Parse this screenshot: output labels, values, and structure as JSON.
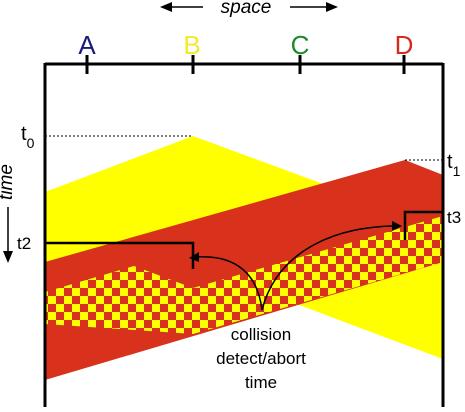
{
  "axis": {
    "space_label": "space",
    "time_label": "time"
  },
  "stations": [
    {
      "label": "A",
      "color": "#1a1a7a"
    },
    {
      "label": "B",
      "color": "#f2ea2a"
    },
    {
      "label": "C",
      "color": "#1e8a2e"
    },
    {
      "label": "D",
      "color": "#d42a1f"
    }
  ],
  "time_markers": {
    "t0": {
      "base": "t",
      "sub": "0"
    },
    "t1": {
      "base": "t",
      "sub": "1"
    },
    "t2": "t2",
    "t3": "t3"
  },
  "annotation": {
    "line1": "collision",
    "line2": "detect/abort",
    "line3": "time"
  },
  "colors": {
    "yellow": "#ffff00",
    "red": "#d8311c",
    "ink": "#000000"
  }
}
